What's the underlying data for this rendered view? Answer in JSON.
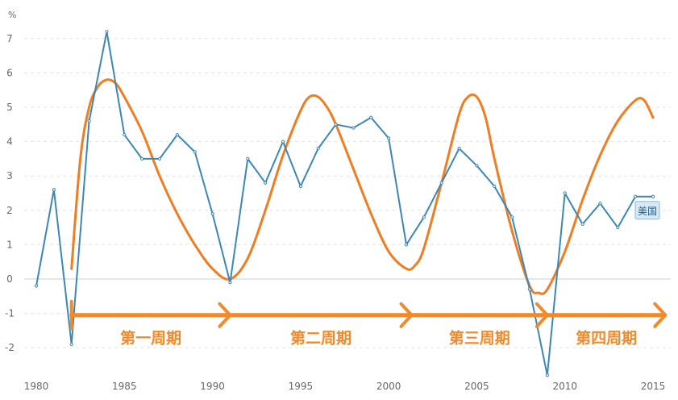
{
  "chart_data": {
    "type": "line",
    "unit_label": "%",
    "xlim": [
      1980,
      2015
    ],
    "ylim": [
      -2,
      7
    ],
    "x_ticks": [
      1980,
      1985,
      1990,
      1995,
      2000,
      2005,
      2010,
      2015
    ],
    "y_ticks": [
      -2,
      -1,
      0,
      1,
      2,
      3,
      4,
      5,
      6,
      7
    ],
    "grid": "horizontal-dashed",
    "series": [
      {
        "name": "美国",
        "color": "#3A87B8",
        "x": [
          1980,
          1981,
          1982,
          1983,
          1984,
          1985,
          1986,
          1987,
          1988,
          1989,
          1990,
          1991,
          1992,
          1993,
          1994,
          1995,
          1996,
          1997,
          1998,
          1999,
          2000,
          2001,
          2002,
          2003,
          2004,
          2005,
          2006,
          2007,
          2008,
          2009,
          2010,
          2011,
          2012,
          2013,
          2014,
          2015
        ],
        "values": [
          -0.2,
          2.6,
          -1.9,
          4.6,
          7.2,
          4.2,
          3.5,
          3.5,
          4.2,
          3.7,
          1.9,
          -0.1,
          3.5,
          2.8,
          4.0,
          2.7,
          3.8,
          4.5,
          4.4,
          4.7,
          4.1,
          1.0,
          1.8,
          2.8,
          3.8,
          3.3,
          2.7,
          1.8,
          -0.3,
          -2.8,
          2.5,
          1.6,
          2.2,
          1.5,
          2.4,
          2.4
        ]
      }
    ],
    "trend_curve": {
      "color": "#F07D22",
      "x": [
        1982.0,
        1982.5,
        1983.0,
        1983.5,
        1984.0,
        1984.5,
        1985.0,
        1986.0,
        1987.0,
        1988.0,
        1989.0,
        1990.0,
        1991.0,
        1992.0,
        1993.0,
        1994.0,
        1995.0,
        1995.5,
        1996.0,
        1996.5,
        1997.0,
        1998.0,
        1999.0,
        2000.0,
        2001.0,
        2001.5,
        2002.0,
        2003.0,
        2004.0,
        2004.5,
        2005.0,
        2005.5,
        2006.0,
        2007.0,
        2008.0,
        2008.5,
        2009.0,
        2010.0,
        2011.0,
        2012.0,
        2013.0,
        2014.0,
        2014.5,
        2015.0
      ],
      "values": [
        0.3,
        3.5,
        5.0,
        5.6,
        5.8,
        5.7,
        5.3,
        4.3,
        3.0,
        1.9,
        1.0,
        0.3,
        0.0,
        0.6,
        2.0,
        3.6,
        4.9,
        5.3,
        5.3,
        5.0,
        4.5,
        3.2,
        1.9,
        0.8,
        0.3,
        0.4,
        0.9,
        2.8,
        4.8,
        5.3,
        5.3,
        4.7,
        3.5,
        1.4,
        -0.2,
        -0.4,
        -0.3,
        0.8,
        2.3,
        3.6,
        4.6,
        5.2,
        5.2,
        4.7
      ]
    },
    "phases": [
      {
        "label": "第一周期",
        "from": 1982,
        "to": 1991
      },
      {
        "label": "第二周期",
        "from": 1991,
        "to": 2001.3
      },
      {
        "label": "第三周期",
        "from": 2001.3,
        "to": 2009
      },
      {
        "label": "第四周期",
        "from": 2009,
        "to": 2015.7
      }
    ],
    "phase_arrow_y": -1.05,
    "legend": {
      "text": "美国",
      "placement": "right-end-of-series"
    }
  }
}
